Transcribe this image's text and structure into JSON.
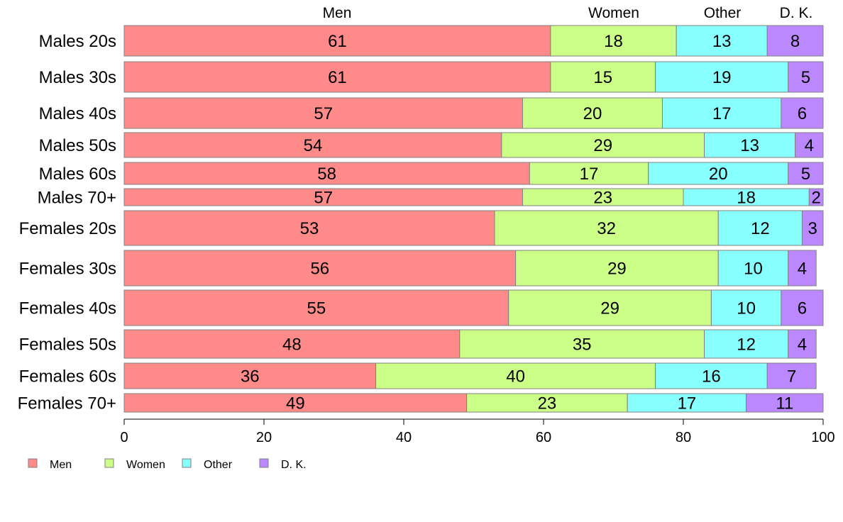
{
  "chart_data": {
    "type": "bar",
    "orientation": "horizontal",
    "stacked": true,
    "title": "",
    "xlabel": "",
    "ylabel": "",
    "xlim": [
      0,
      100
    ],
    "x_ticks": [
      0,
      20,
      40,
      60,
      80,
      100
    ],
    "grid": false,
    "legend_position": "bottom-left",
    "categories": [
      "Males 20s",
      "Males 30s",
      "Males 40s",
      "Males 50s",
      "Males 60s",
      "Males 70+",
      "Females 20s",
      "Females 30s",
      "Females 40s",
      "Females 50s",
      "Females 60s",
      "Females 70+"
    ],
    "series": [
      {
        "name": "Men",
        "color": "#ff8a8a",
        "values": [
          61,
          61,
          57,
          54,
          58,
          57,
          53,
          56,
          55,
          48,
          36,
          49
        ]
      },
      {
        "name": "Women",
        "color": "#ccff88",
        "values": [
          18,
          15,
          20,
          29,
          17,
          23,
          32,
          29,
          29,
          35,
          40,
          23
        ]
      },
      {
        "name": "Other",
        "color": "#88ffff",
        "values": [
          13,
          19,
          17,
          13,
          20,
          18,
          12,
          10,
          10,
          12,
          16,
          17
        ]
      },
      {
        "name": "D. K.",
        "color": "#bb88ff",
        "values": [
          8,
          5,
          6,
          4,
          5,
          2,
          3,
          4,
          6,
          4,
          7,
          11
        ]
      }
    ],
    "top_labels": [
      "Men",
      "Women",
      "Other",
      "D. K."
    ]
  }
}
